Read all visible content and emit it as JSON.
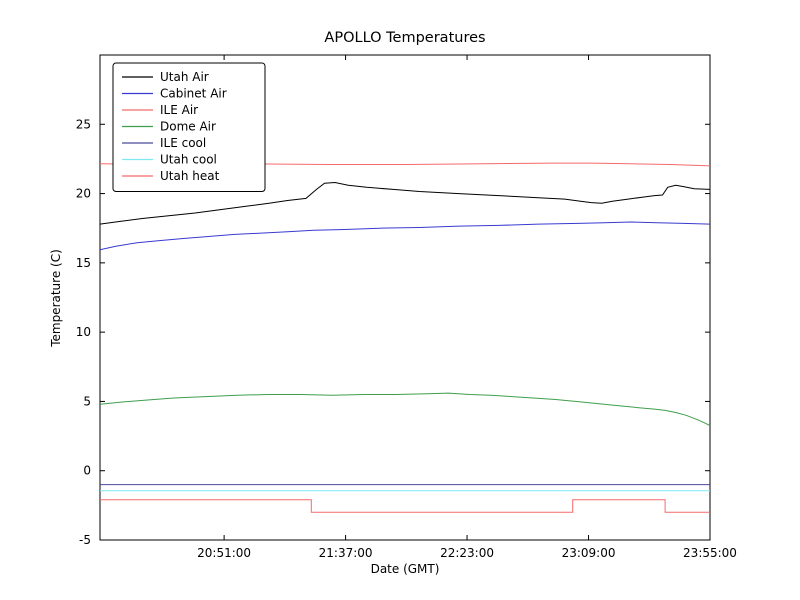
{
  "figure": {
    "background": "#ffffff"
  },
  "chart_data": {
    "type": "line",
    "title": "APOLLO Temperatures",
    "xlabel": "Date (GMT)",
    "ylabel": "Temperature (C)",
    "ylim": [
      -5,
      30
    ],
    "xlim_minutes": [
      1204,
      1435
    ],
    "yticks": [
      -5,
      0,
      5,
      10,
      15,
      20,
      25
    ],
    "xticks": [
      {
        "minutes": 1251,
        "label": "20:51:00"
      },
      {
        "minutes": 1297,
        "label": "21:37:00"
      },
      {
        "minutes": 1343,
        "label": "22:23:00"
      },
      {
        "minutes": 1389,
        "label": "23:09:00"
      },
      {
        "minutes": 1435,
        "label": "23:55:00"
      }
    ],
    "grid": false,
    "legend_position": "upper left",
    "series": [
      {
        "name": "Utah Air",
        "color": "#000000",
        "points": [
          [
            1204,
            17.8
          ],
          [
            1212,
            18.0
          ],
          [
            1220,
            18.2
          ],
          [
            1230,
            18.4
          ],
          [
            1240,
            18.6
          ],
          [
            1250,
            18.85
          ],
          [
            1260,
            19.1
          ],
          [
            1268,
            19.3
          ],
          [
            1275,
            19.5
          ],
          [
            1282,
            19.65
          ],
          [
            1286,
            20.3
          ],
          [
            1289,
            20.75
          ],
          [
            1293,
            20.8
          ],
          [
            1298,
            20.6
          ],
          [
            1305,
            20.45
          ],
          [
            1315,
            20.3
          ],
          [
            1325,
            20.15
          ],
          [
            1340,
            20.0
          ],
          [
            1355,
            19.85
          ],
          [
            1370,
            19.7
          ],
          [
            1380,
            19.6
          ],
          [
            1386,
            19.45
          ],
          [
            1390,
            19.35
          ],
          [
            1394,
            19.3
          ],
          [
            1398,
            19.45
          ],
          [
            1404,
            19.6
          ],
          [
            1410,
            19.75
          ],
          [
            1414,
            19.85
          ],
          [
            1417,
            19.9
          ],
          [
            1419,
            20.45
          ],
          [
            1422,
            20.6
          ],
          [
            1425,
            20.5
          ],
          [
            1429,
            20.35
          ],
          [
            1435,
            20.3
          ]
        ]
      },
      {
        "name": "Cabinet Air",
        "color": "#3a3ad0",
        "points": [
          [
            1204,
            15.95
          ],
          [
            1210,
            16.2
          ],
          [
            1218,
            16.45
          ],
          [
            1226,
            16.6
          ],
          [
            1235,
            16.75
          ],
          [
            1245,
            16.9
          ],
          [
            1255,
            17.05
          ],
          [
            1265,
            17.15
          ],
          [
            1275,
            17.25
          ],
          [
            1285,
            17.35
          ],
          [
            1295,
            17.4
          ],
          [
            1310,
            17.5
          ],
          [
            1325,
            17.55
          ],
          [
            1340,
            17.65
          ],
          [
            1355,
            17.7
          ],
          [
            1370,
            17.8
          ],
          [
            1385,
            17.85
          ],
          [
            1395,
            17.9
          ],
          [
            1405,
            17.95
          ],
          [
            1415,
            17.9
          ],
          [
            1425,
            17.85
          ],
          [
            1435,
            17.8
          ]
        ]
      },
      {
        "name": "ILE Air",
        "color": "#f56a6a",
        "points": [
          [
            1204,
            22.15
          ],
          [
            1230,
            22.1
          ],
          [
            1260,
            22.15
          ],
          [
            1290,
            22.1
          ],
          [
            1320,
            22.1
          ],
          [
            1350,
            22.15
          ],
          [
            1375,
            22.2
          ],
          [
            1390,
            22.2
          ],
          [
            1405,
            22.15
          ],
          [
            1420,
            22.1
          ],
          [
            1435,
            22.0
          ]
        ]
      },
      {
        "name": "Dome Air",
        "color": "#3f9e4d",
        "points": [
          [
            1204,
            4.8
          ],
          [
            1212,
            4.95
          ],
          [
            1222,
            5.1
          ],
          [
            1232,
            5.25
          ],
          [
            1244,
            5.35
          ],
          [
            1256,
            5.45
          ],
          [
            1268,
            5.5
          ],
          [
            1280,
            5.5
          ],
          [
            1292,
            5.45
          ],
          [
            1304,
            5.5
          ],
          [
            1316,
            5.5
          ],
          [
            1328,
            5.55
          ],
          [
            1336,
            5.6
          ],
          [
            1344,
            5.5
          ],
          [
            1352,
            5.45
          ],
          [
            1360,
            5.35
          ],
          [
            1368,
            5.25
          ],
          [
            1376,
            5.15
          ],
          [
            1384,
            5.0
          ],
          [
            1392,
            4.85
          ],
          [
            1400,
            4.7
          ],
          [
            1408,
            4.55
          ],
          [
            1414,
            4.45
          ],
          [
            1418,
            4.35
          ],
          [
            1422,
            4.2
          ],
          [
            1426,
            4.0
          ],
          [
            1430,
            3.7
          ],
          [
            1433,
            3.45
          ],
          [
            1435,
            3.25
          ]
        ]
      },
      {
        "name": "ILE cool",
        "color": "#4a4a9c",
        "points": [
          [
            1204,
            -1.0
          ],
          [
            1435,
            -1.0
          ]
        ]
      },
      {
        "name": "Utah cool",
        "color": "#7fe9f2",
        "points": [
          [
            1204,
            -1.45
          ],
          [
            1435,
            -1.45
          ]
        ]
      },
      {
        "name": "Utah heat",
        "color": "#f56a6a",
        "points": [
          [
            1204,
            -2.1
          ],
          [
            1284,
            -2.1
          ],
          [
            1284,
            -3.0
          ],
          [
            1383,
            -3.0
          ],
          [
            1383,
            -2.1
          ],
          [
            1418,
            -2.1
          ],
          [
            1418,
            -3.0
          ],
          [
            1435,
            -3.0
          ]
        ]
      }
    ]
  }
}
